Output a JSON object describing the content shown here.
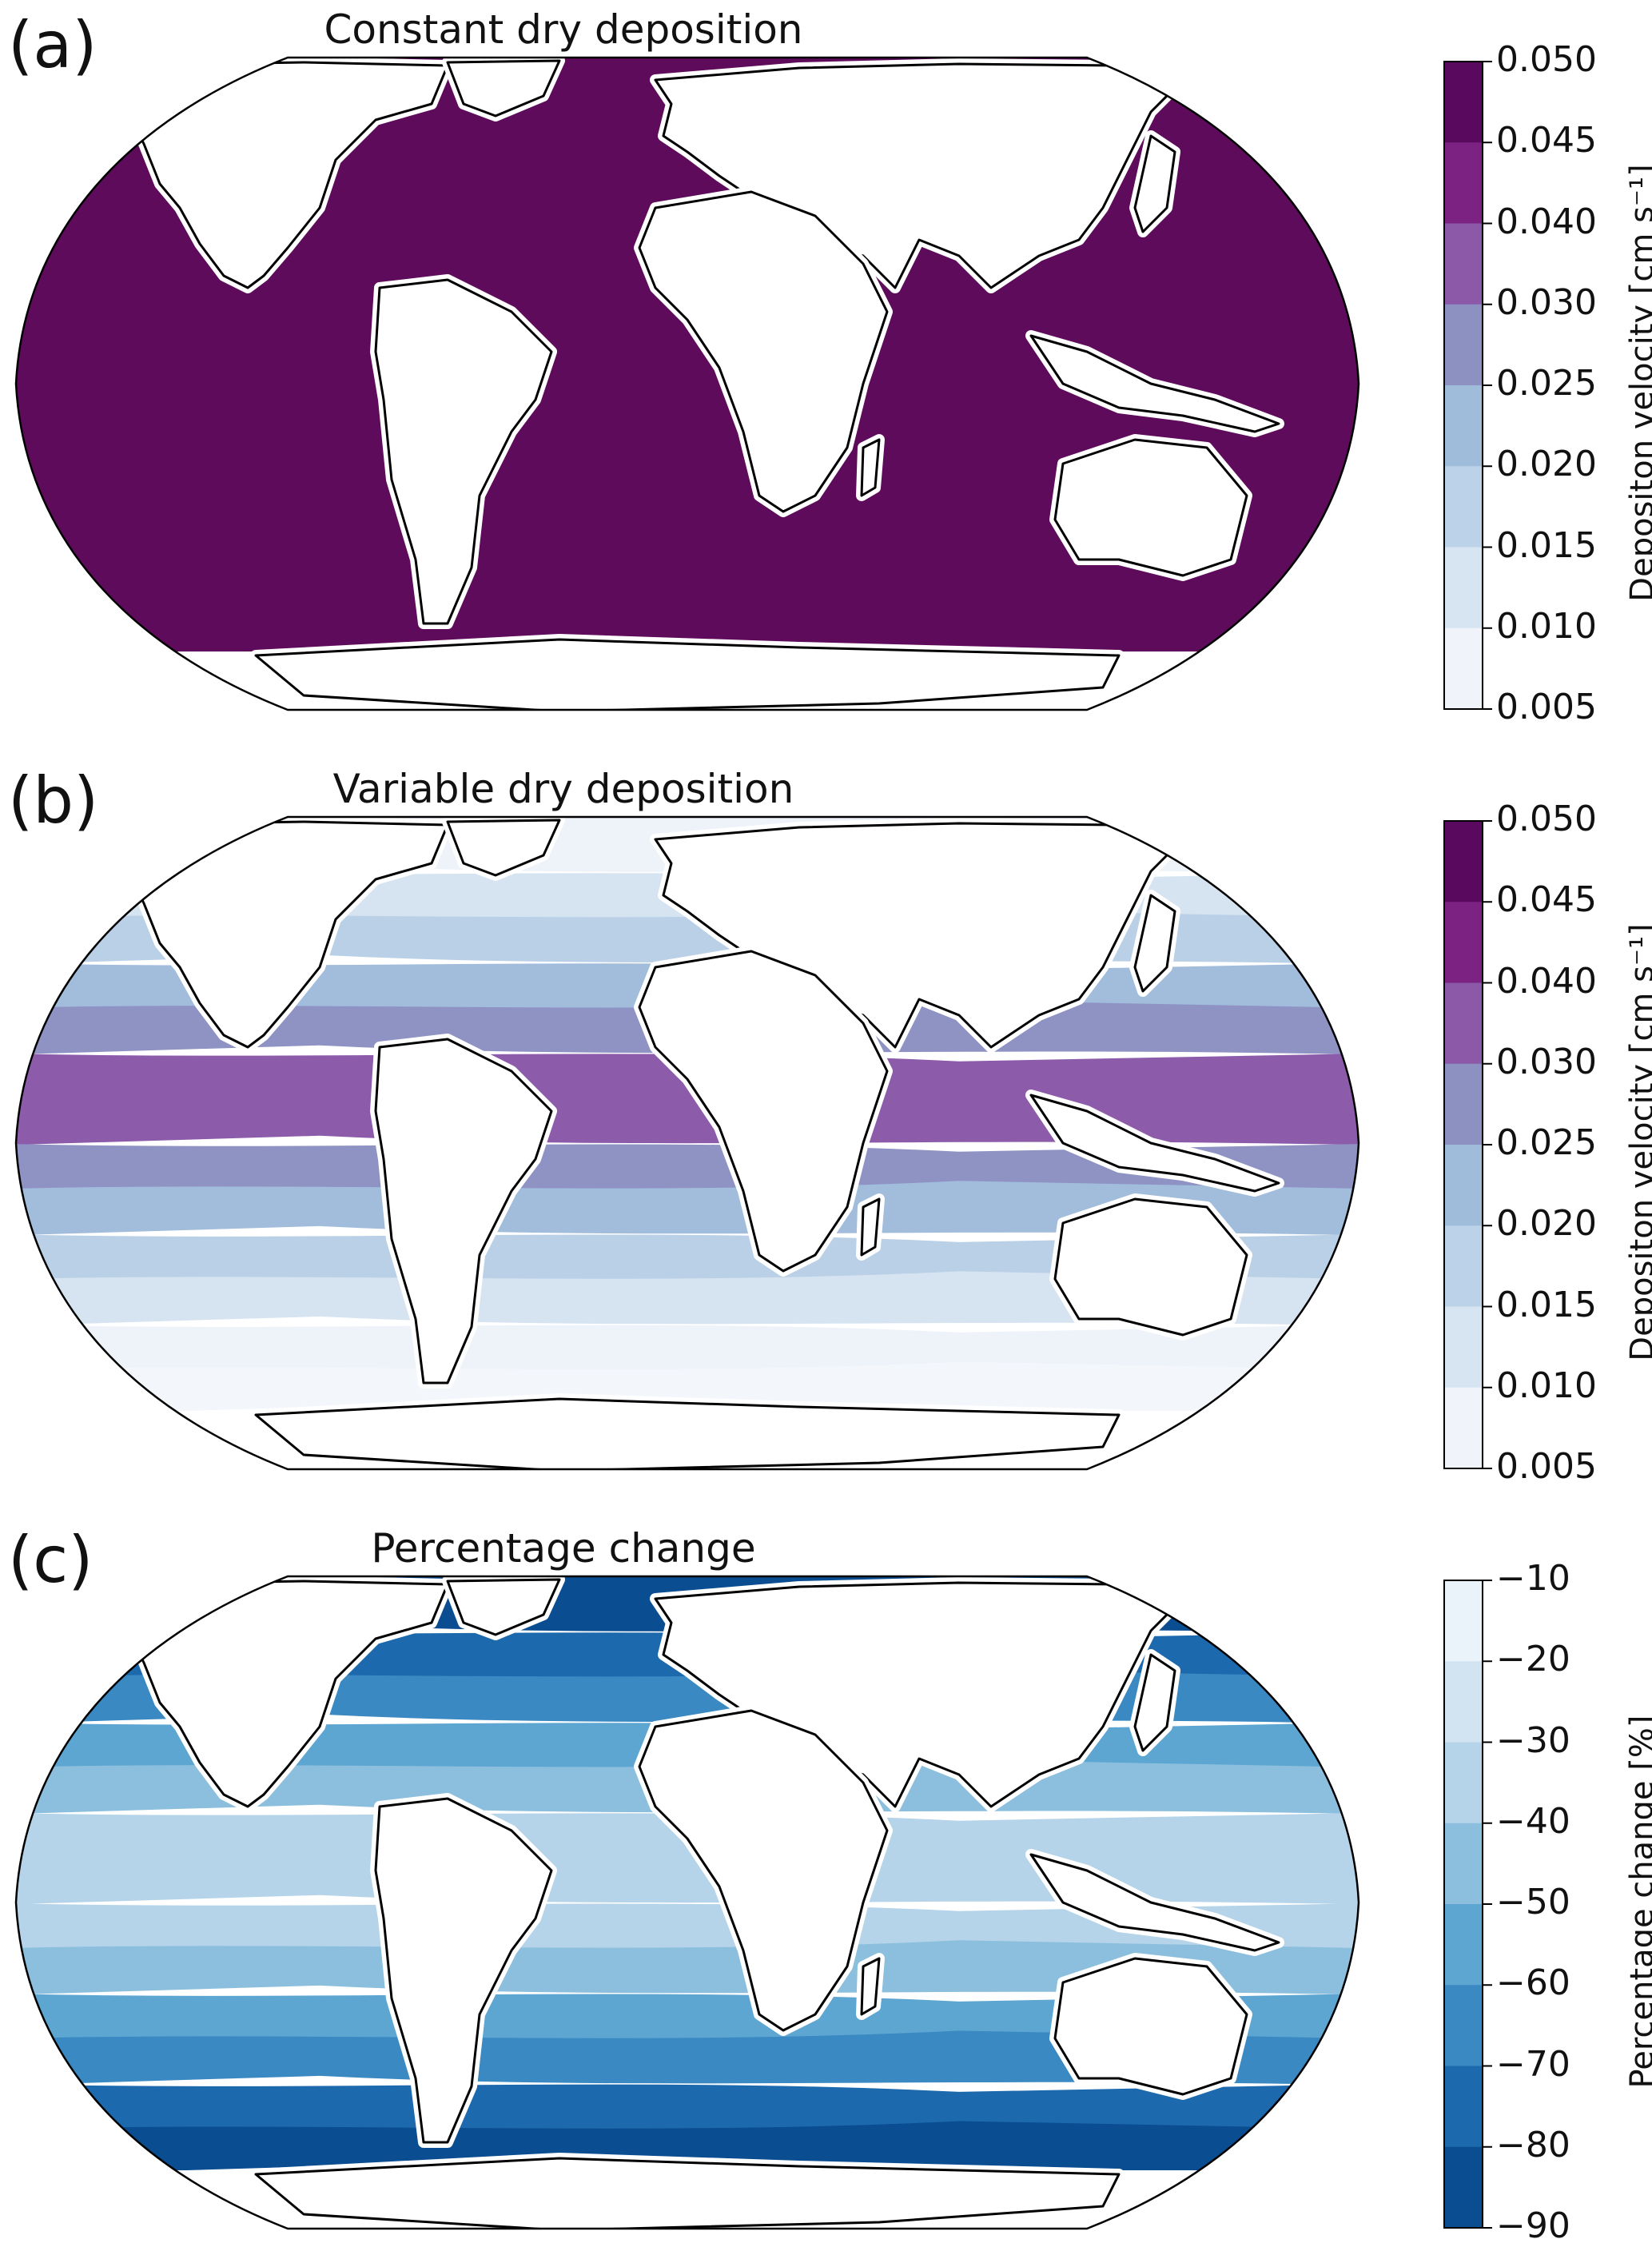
{
  "panels": [
    {
      "letter": "(a)",
      "title": "Constant dry deposition",
      "colorbar": {
        "label": "Depositon velocity [cm s⁻¹]",
        "ticks": [
          "0.050",
          "0.045",
          "0.040",
          "0.030",
          "0.025",
          "0.020",
          "0.015",
          "0.010",
          "0.005"
        ],
        "colors": [
          "#5a0a5e",
          "#7b2283",
          "#8c58a8",
          "#8c91c2",
          "#a0bcdb",
          "#bcd2e8",
          "#d7e4f1",
          "#f0f4fa"
        ]
      },
      "ocean_fill": {
        "color": "#5e0b5c",
        "level": "0.045–0.050"
      }
    },
    {
      "letter": "(b)",
      "title": "Variable dry deposition",
      "colorbar": {
        "label": "Depositon velocity [cm s⁻¹]",
        "ticks": [
          "0.050",
          "0.045",
          "0.040",
          "0.030",
          "0.025",
          "0.020",
          "0.015",
          "0.010",
          "0.005"
        ],
        "colors": [
          "#5a0a5e",
          "#7b2283",
          "#8c58a8",
          "#8c91c2",
          "#a0bcdb",
          "#bcd2e8",
          "#d7e4f1",
          "#f0f4fa"
        ]
      },
      "bands": [
        "#eef3fa",
        "#d6e4f1",
        "#bad0e7",
        "#a2bcdc",
        "#8e93c4",
        "#8c5cab",
        "#8c5cab",
        "#8e93c4",
        "#a2bcdc",
        "#bad0e7",
        "#d6e4f1",
        "#eef3fa",
        "#f3f6fb"
      ]
    },
    {
      "letter": "(c)",
      "title": "Percentage change",
      "colorbar": {
        "label": "Percentage change [%]",
        "ticks": [
          "−10",
          "−20",
          "−30",
          "−40",
          "−50",
          "−60",
          "−70",
          "−80",
          "−90"
        ],
        "colors": [
          "#eaf2fa",
          "#d2e3f2",
          "#b5d4e9",
          "#8cbfdd",
          "#5ea6d2",
          "#3b89c2",
          "#1d69ad",
          "#0b4d91"
        ]
      },
      "bands": [
        "#0b4d91",
        "#1d69ad",
        "#3b89c2",
        "#5ea6d2",
        "#8cbfdd",
        "#b5d4e9",
        "#b5d4e9",
        "#b5d4e9",
        "#8cbfdd",
        "#5ea6d2",
        "#3b89c2",
        "#1d69ad",
        "#0b4d91"
      ]
    }
  ]
}
